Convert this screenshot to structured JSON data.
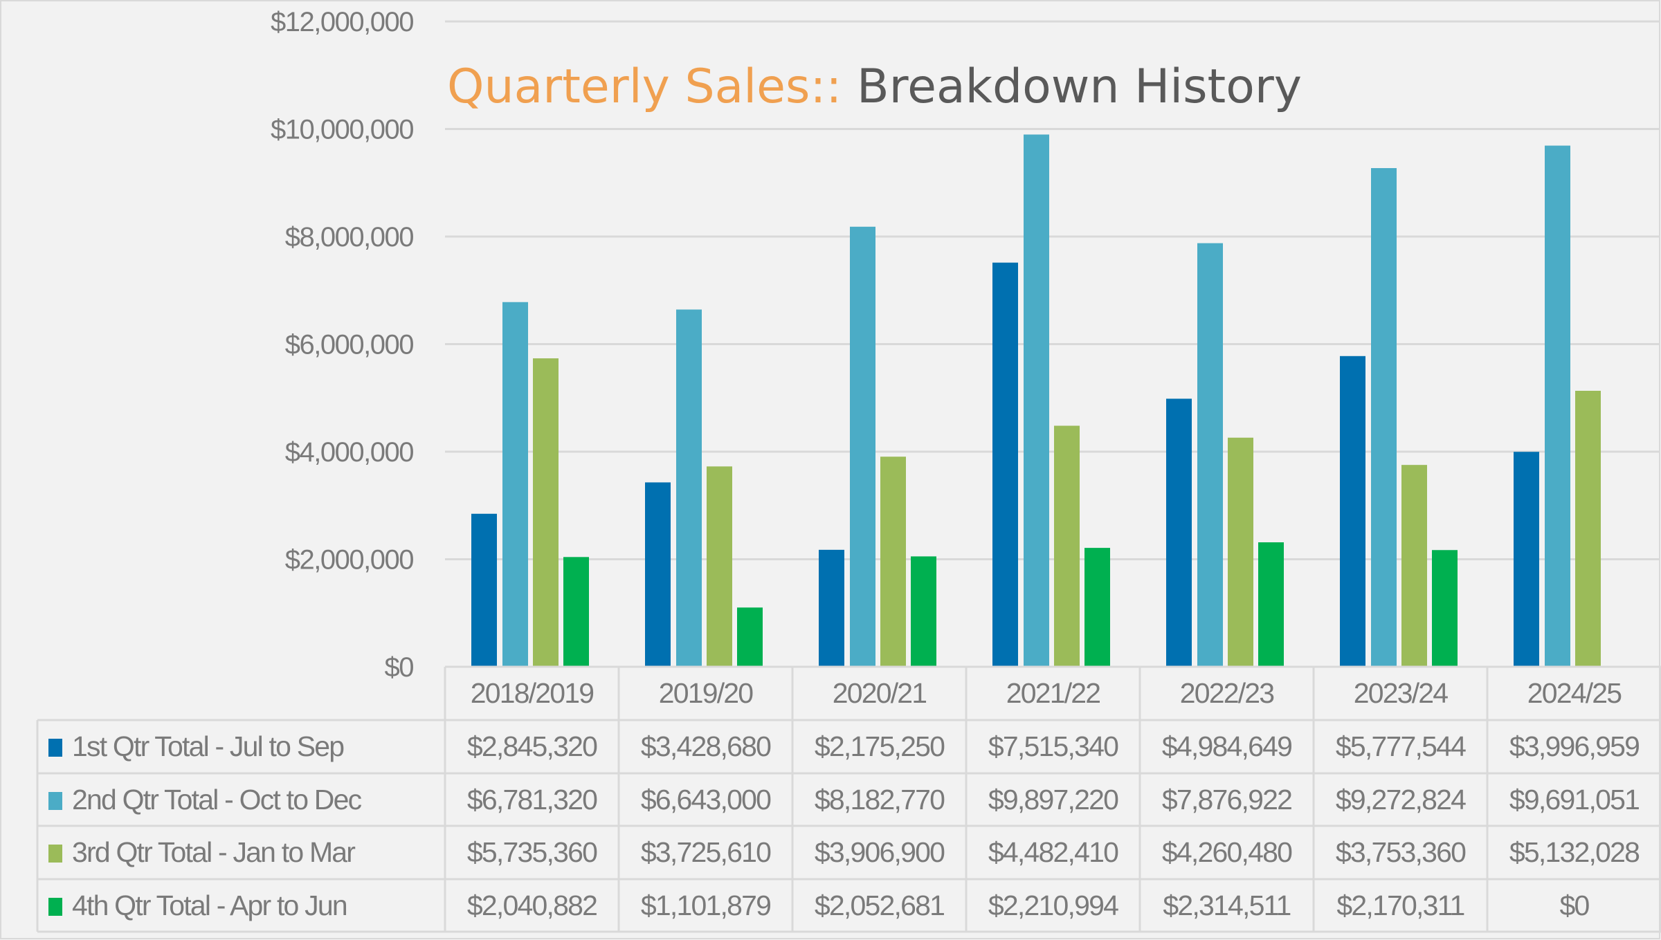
{
  "chart_data": {
    "type": "bar",
    "title_part1": "Quarterly Sales::",
    "title_part2": "Breakdown History",
    "xlabel": "",
    "ylabel": "",
    "ylim": [
      0,
      12000000
    ],
    "yticks": [
      0,
      2000000,
      4000000,
      6000000,
      8000000,
      10000000,
      12000000
    ],
    "ytick_labels": [
      "$0",
      "$2,000,000",
      "$4,000,000",
      "$6,000,000",
      "$8,000,000",
      "$10,000,000",
      "$12,000,000"
    ],
    "grid": true,
    "legend_placement": "data-table-below",
    "categories": [
      "2018/2019",
      "2019/20",
      "2020/21",
      "2021/22",
      "2022/23",
      "2023/24",
      "2024/25"
    ],
    "series": [
      {
        "name": "1st Qtr Total - Jul to Sep",
        "color": "#0070b0",
        "values": [
          2845320,
          3428680,
          2175250,
          7515340,
          4984649,
          5777544,
          3996959
        ],
        "labels": [
          "$2,845,320",
          "$3,428,680",
          "$2,175,250",
          "$7,515,340",
          "$4,984,649",
          "$5,777,544",
          "$3,996,959"
        ]
      },
      {
        "name": "2nd Qtr Total - Oct to Dec",
        "color": "#4bacc6",
        "values": [
          6781320,
          6643000,
          8182770,
          9897220,
          7876922,
          9272824,
          9691051
        ],
        "labels": [
          "$6,781,320",
          "$6,643,000",
          "$8,182,770",
          "$9,897,220",
          "$7,876,922",
          "$9,272,824",
          "$9,691,051"
        ]
      },
      {
        "name": "3rd Qtr Total - Jan to Mar",
        "color": "#9bbb59",
        "values": [
          5735360,
          3725610,
          3906900,
          4482410,
          4260480,
          3753360,
          5132028
        ],
        "labels": [
          "$5,735,360",
          "$3,725,610",
          "$3,906,900",
          "$4,482,410",
          "$4,260,480",
          "$3,753,360",
          "$5,132,028"
        ]
      },
      {
        "name": "4th Qtr Total - Apr to Jun",
        "color": "#00b050",
        "values": [
          2040882,
          1101879,
          2052681,
          2210994,
          2314511,
          2170311,
          0
        ],
        "labels": [
          "$2,040,882",
          "$1,101,879",
          "$2,052,681",
          "$2,210,994",
          "$2,314,511",
          "$2,170,311",
          "$0"
        ]
      }
    ]
  }
}
